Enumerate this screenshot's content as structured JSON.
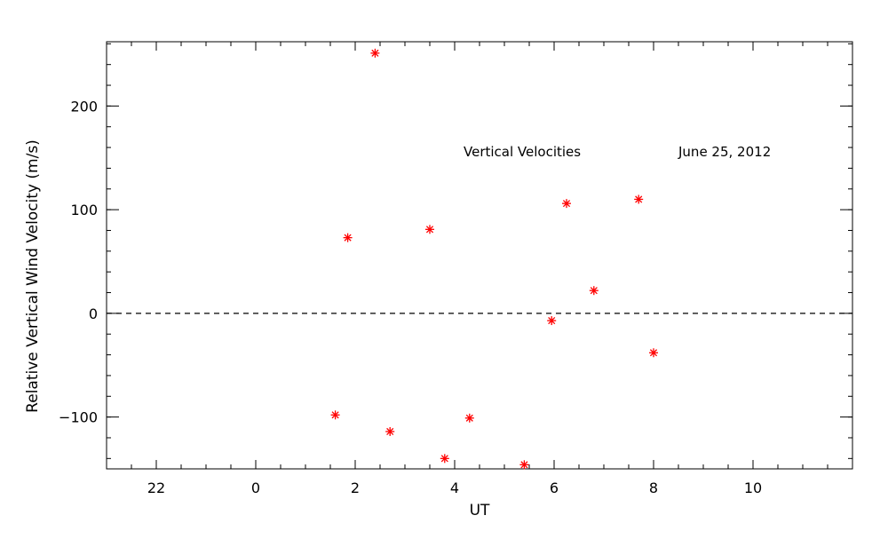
{
  "chart_data": {
    "type": "scatter",
    "title": "",
    "xlabel": "UT",
    "ylabel": "Relative Vertical Wind Velocity (m/s)",
    "annotations": [
      {
        "text": "Vertical Velocities"
      },
      {
        "text": "June 25, 2012"
      }
    ],
    "x_unit": "hours, UT, wrapping at 24 (22 → 0)",
    "xlim": [
      21,
      36
    ],
    "ylim": [
      -150,
      262
    ],
    "x_ticks": [
      {
        "value": 22,
        "label": "22"
      },
      {
        "value": 24,
        "label": "0"
      },
      {
        "value": 26,
        "label": "2"
      },
      {
        "value": 28,
        "label": "4"
      },
      {
        "value": 30,
        "label": "6"
      },
      {
        "value": 32,
        "label": "8"
      },
      {
        "value": 34,
        "label": "10"
      }
    ],
    "x_minor_step": 0.5,
    "y_ticks": [
      {
        "value": -100,
        "label": "−100"
      },
      {
        "value": 0,
        "label": "0"
      },
      {
        "value": 100,
        "label": "100"
      },
      {
        "value": 200,
        "label": "200"
      }
    ],
    "y_minor_step": 20,
    "reference_line": {
      "y": 0,
      "style": "dashed"
    },
    "marker": "asterisk",
    "marker_color": "#ff0000",
    "grid": false,
    "points": [
      {
        "x": 1.6,
        "y": -98
      },
      {
        "x": 1.85,
        "y": 73
      },
      {
        "x": 2.4,
        "y": 251
      },
      {
        "x": 2.7,
        "y": -114
      },
      {
        "x": 3.5,
        "y": 81
      },
      {
        "x": 3.8,
        "y": -140
      },
      {
        "x": 4.3,
        "y": -101
      },
      {
        "x": 5.4,
        "y": -146
      },
      {
        "x": 5.95,
        "y": -7
      },
      {
        "x": 6.25,
        "y": 106
      },
      {
        "x": 6.8,
        "y": 22
      },
      {
        "x": 7.7,
        "y": 110
      },
      {
        "x": 8.0,
        "y": -38
      }
    ]
  }
}
